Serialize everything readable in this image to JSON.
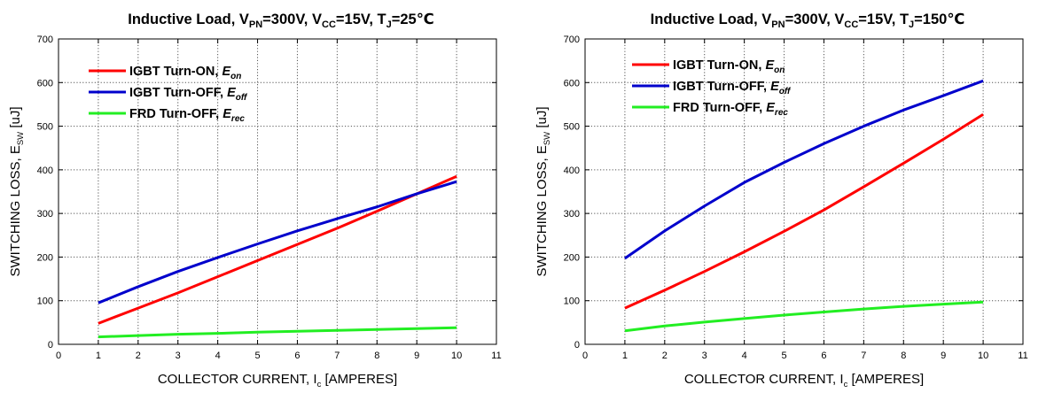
{
  "colors": {
    "igbt_on": "#ff0000",
    "igbt_off": "#0000cc",
    "frd_off": "#22ee22"
  },
  "chart_data": [
    {
      "type": "line",
      "title": {
        "prefix": "Inductive Load, V",
        "sub1": "PN",
        "mid1": "=300V, V",
        "sub2": "CC",
        "mid2": "=15V, T",
        "sub3": "J",
        "suffix": "=25℃"
      },
      "xlabel": {
        "main": "COLLECTOR CURRENT, I",
        "sub": "c",
        "unit": " [AMPERES]"
      },
      "ylabel": {
        "main": "SWITCHING LOSS, E",
        "sub": "SW",
        "unit": " [uJ]"
      },
      "xlim": [
        0,
        11
      ],
      "ylim": [
        0,
        700
      ],
      "xticks": [
        0,
        1,
        2,
        3,
        4,
        5,
        6,
        7,
        8,
        9,
        10,
        11
      ],
      "yticks": [
        0,
        100,
        200,
        300,
        400,
        500,
        600,
        700
      ],
      "grid": true,
      "legend_placement": "top-left",
      "x": [
        1,
        2,
        3,
        4,
        5,
        6,
        7,
        8,
        9,
        10
      ],
      "series": [
        {
          "name": "IGBT Turn-ON, ",
          "sym": "E",
          "sub": "on",
          "color_key": "igbt_on",
          "values": [
            48,
            83,
            118,
            155,
            192,
            229,
            266,
            305,
            345,
            385
          ]
        },
        {
          "name": "IGBT Turn-OFF, ",
          "sym": "E",
          "sub": "off",
          "color_key": "igbt_off",
          "values": [
            95,
            132,
            167,
            199,
            230,
            260,
            288,
            315,
            345,
            373
          ]
        },
        {
          "name": "FRD Turn-OFF, ",
          "sym": "E",
          "sub": "rec",
          "color_key": "frd_off",
          "values": [
            17,
            20,
            23,
            25,
            28,
            30,
            32,
            34,
            36,
            38
          ]
        }
      ]
    },
    {
      "type": "line",
      "title": {
        "prefix": "Inductive Load, V",
        "sub1": "PN",
        "mid1": "=300V, V",
        "sub2": "CC",
        "mid2": "=15V, T",
        "sub3": "J",
        "suffix": "=150℃"
      },
      "xlabel": {
        "main": "COLLECTOR CURRENT, I",
        "sub": "c",
        "unit": " [AMPERES]"
      },
      "ylabel": {
        "main": "SWITCHING LOSS, E",
        "sub": "SW",
        "unit": " [uJ]"
      },
      "xlim": [
        0,
        11
      ],
      "ylim": [
        0,
        700
      ],
      "xticks": [
        0,
        1,
        2,
        3,
        4,
        5,
        6,
        7,
        8,
        9,
        10,
        11
      ],
      "yticks": [
        0,
        100,
        200,
        300,
        400,
        500,
        600,
        700
      ],
      "grid": true,
      "legend_placement": "top-left",
      "x": [
        1,
        2,
        3,
        4,
        5,
        6,
        7,
        8,
        9,
        10
      ],
      "series": [
        {
          "name": "IGBT Turn-ON, ",
          "sym": "E",
          "sub": "on",
          "color_key": "igbt_on",
          "values": [
            83,
            124,
            167,
            212,
            259,
            308,
            361,
            415,
            470,
            527
          ]
        },
        {
          "name": "IGBT Turn-OFF, ",
          "sym": "E",
          "sub": "off",
          "color_key": "igbt_off",
          "values": [
            197,
            260,
            317,
            371,
            417,
            460,
            500,
            537,
            570,
            604
          ]
        },
        {
          "name": "FRD Turn-OFF, ",
          "sym": "E",
          "sub": "rec",
          "color_key": "frd_off",
          "values": [
            31,
            42,
            51,
            59,
            67,
            74,
            81,
            87,
            92,
            97
          ]
        }
      ]
    }
  ]
}
